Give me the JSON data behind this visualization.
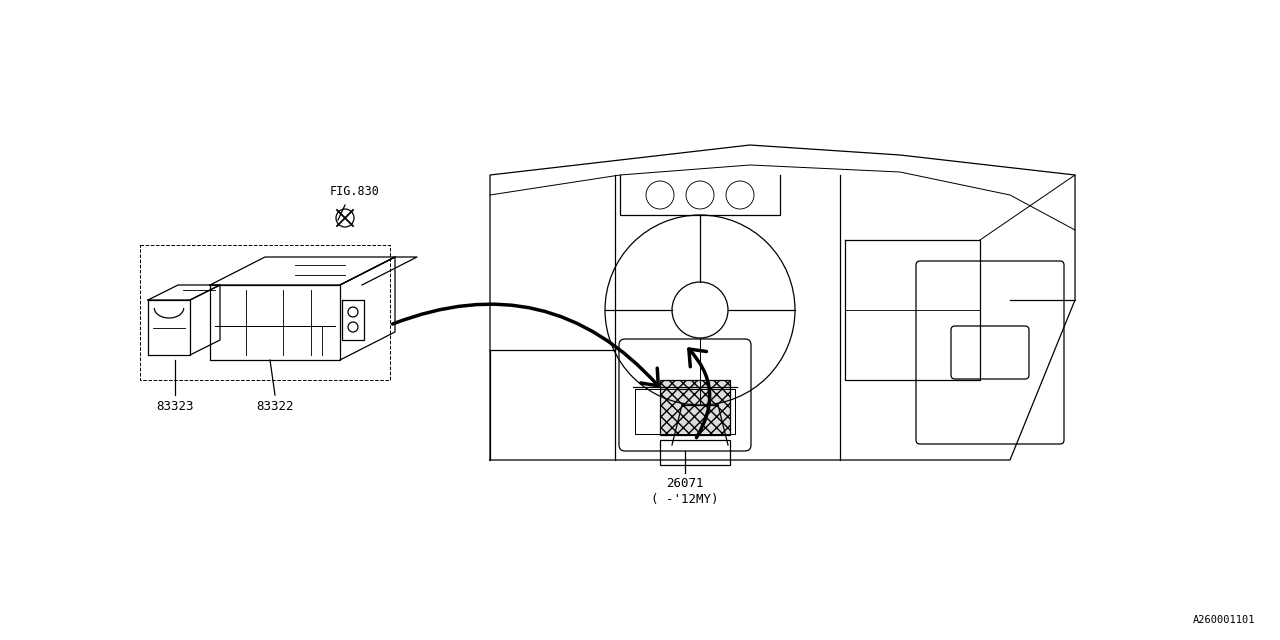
{
  "bg_color": "#ffffff",
  "line_color": "#000000",
  "fig_width": 12.8,
  "fig_height": 6.4,
  "dpi": 100,
  "watermark": "A260001101",
  "lw": 0.9
}
